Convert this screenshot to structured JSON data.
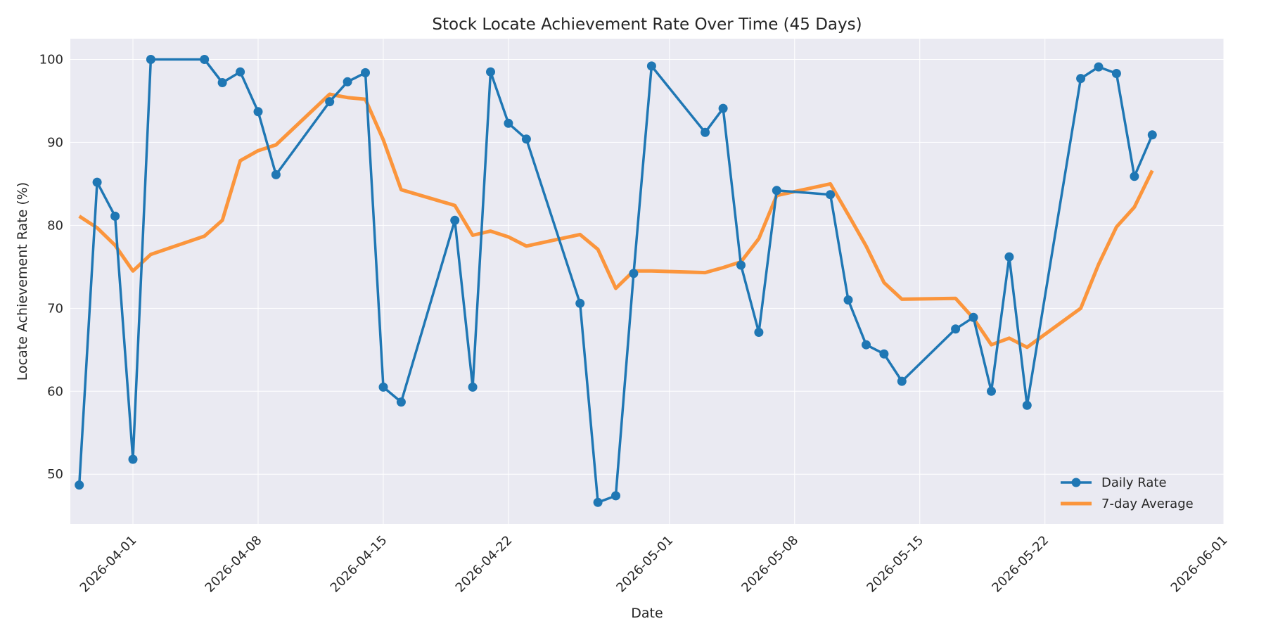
{
  "chart_data": {
    "type": "line",
    "title": "Stock Locate Achievement Rate Over Time (45 Days)",
    "xlabel": "Date",
    "ylabel": "Locate Achievement Rate (%)",
    "xlim": [
      "2026-03-28T12:00",
      "2026-06-01"
    ],
    "ylim": [
      44,
      102.5
    ],
    "x_ticks": [
      "2026-04-01",
      "2026-04-08",
      "2026-04-15",
      "2026-04-22",
      "2026-05-01",
      "2026-05-08",
      "2026-05-15",
      "2026-05-22",
      "2026-06-01"
    ],
    "y_ticks": [
      50,
      60,
      70,
      80,
      90,
      100
    ],
    "grid": true,
    "legend_position": "lower-right",
    "x": [
      "2026-03-29",
      "2026-03-30",
      "2026-03-31",
      "2026-04-01",
      "2026-04-02",
      "2026-04-05",
      "2026-04-06",
      "2026-04-07",
      "2026-04-08",
      "2026-04-09",
      "2026-04-12",
      "2026-04-13",
      "2026-04-14",
      "2026-04-15",
      "2026-04-16",
      "2026-04-19",
      "2026-04-20",
      "2026-04-21",
      "2026-04-22",
      "2026-04-23",
      "2026-04-26",
      "2026-04-27",
      "2026-04-28",
      "2026-04-29",
      "2026-04-30",
      "2026-05-03",
      "2026-05-04",
      "2026-05-05",
      "2026-05-06",
      "2026-05-07",
      "2026-05-10",
      "2026-05-11",
      "2026-05-12",
      "2026-05-13",
      "2026-05-14",
      "2026-05-17",
      "2026-05-18",
      "2026-05-19",
      "2026-05-20",
      "2026-05-21",
      "2026-05-24",
      "2026-05-25",
      "2026-05-26",
      "2026-05-27",
      "2026-05-28"
    ],
    "series": [
      {
        "name": "Daily Rate",
        "color": "#1f77b4",
        "marker": "circle",
        "values": [
          48.7,
          85.2,
          81.1,
          51.8,
          100.0,
          100.0,
          97.2,
          98.5,
          93.7,
          86.1,
          94.9,
          97.3,
          98.4,
          60.5,
          58.7,
          80.6,
          60.5,
          98.5,
          92.3,
          90.4,
          70.6,
          46.6,
          47.4,
          74.2,
          99.2,
          91.2,
          94.1,
          75.2,
          67.1,
          84.2,
          83.7,
          71.0,
          65.6,
          64.5,
          61.2,
          67.5,
          68.9,
          60.0,
          76.2,
          58.3,
          97.7,
          99.1,
          98.3,
          85.9,
          90.9
        ]
      },
      {
        "name": "7-day Average",
        "color": "#ff7f0e",
        "values": [
          81.1,
          79.7,
          77.6,
          74.5,
          76.5,
          78.7,
          80.6,
          87.8,
          89.0,
          89.7,
          95.8,
          95.4,
          95.2,
          90.3,
          84.3,
          82.4,
          78.8,
          79.3,
          78.6,
          77.5,
          78.9,
          77.1,
          72.4,
          74.5,
          74.5,
          74.3,
          74.9,
          75.6,
          78.4,
          83.6,
          85.0,
          81.3,
          77.5,
          73.1,
          71.1,
          71.2,
          68.8,
          65.6,
          66.4,
          65.3,
          70.0,
          75.3,
          79.8,
          82.2,
          86.6
        ]
      }
    ]
  }
}
